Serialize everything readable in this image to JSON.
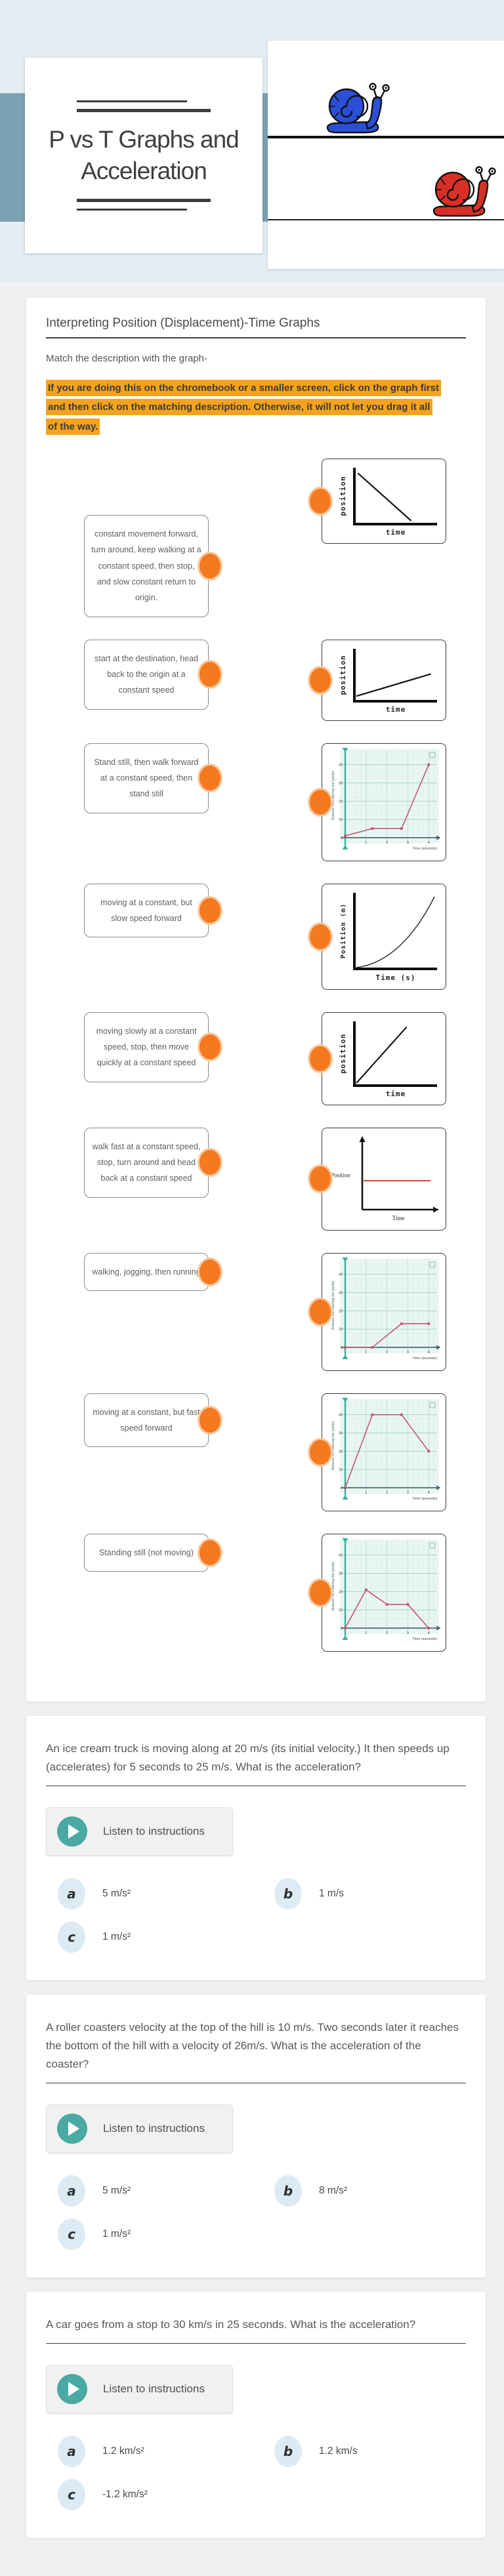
{
  "header": {
    "title": "P vs T Graphs and Acceleration",
    "snails": {
      "blue": "#2B4FD8",
      "red": "#D93025"
    }
  },
  "colors": {
    "highlight_orange": "#F5A21D",
    "connector_orange": "#F4791F",
    "teal_accent": "#4AA9A2",
    "chart_line_pink": "#C2566F",
    "header_band_blue": "#7BA1B3",
    "header_bg_blue": "#E3EDF2"
  },
  "worksheet": {
    "section_title": "Interpreting Position (Displacement)-Time Graphs",
    "match_prompt": "Match the description with the graph-",
    "match_note": "If you are doing this on the chromebook or a smaller screen, click on the graph first and then click on the matching description.  Otherwise, it will not let you drag it all of the way.",
    "pairs": [
      {
        "description": "constant movement forward, turn around, keep walking at a constant speed, then stop, and slow constant return to origin.",
        "graph": {
          "type": "axes-line",
          "ylabel": "position",
          "xlabel": "time",
          "trend": "straight line falling from high position to the time axis",
          "points": [
            [
              0.02,
              0.97
            ],
            [
              0.72,
              0.04
            ]
          ],
          "height": 118
        }
      },
      {
        "description": "start at the destination, head back to the origin at a constant speed",
        "graph": {
          "type": "axes-line",
          "ylabel": "position",
          "xlabel": "time",
          "trend": "gently rising straight line starting just above the origin",
          "points": [
            [
              0.0,
              0.08
            ],
            [
              0.98,
              0.55
            ]
          ],
          "height": 112
        }
      },
      {
        "description": "Stand still, then walk forward at a constant speed, then stand still",
        "graph": {
          "type": "grid-line",
          "ylabel": "Distance from starting line (yards)",
          "xlabel": "Time (seconds)",
          "yticks": [
            10,
            20,
            30,
            40
          ],
          "xticks": [
            1,
            2,
            3,
            4
          ],
          "trend": "slow rise, flat plateau, then steep rise to 40",
          "points_data": [
            [
              0,
              1
            ],
            [
              1.3,
              5
            ],
            [
              2.7,
              5
            ],
            [
              4,
              40
            ]
          ]
        }
      },
      {
        "description": "moving at a constant, but slow speed forward",
        "graph": {
          "type": "axes-curve",
          "ylabel": "Position (m)",
          "xlabel": "Time (s)",
          "trend": "concave-up curve rising faster and faster"
        }
      },
      {
        "description": "moving slowly at a constant speed, stop, then move quickly at a constant speed",
        "graph": {
          "type": "axes-line",
          "ylabel": "position",
          "xlabel": "time",
          "trend": "steep straight line from the origin",
          "points": [
            [
              0.0,
              0.02
            ],
            [
              0.66,
              0.97
            ]
          ],
          "height": 130
        }
      },
      {
        "description": "walk fast at a constant speed, stop, turn around and head back at a constant speed",
        "graph": {
          "type": "arrow-axes",
          "ylabel": "Position",
          "xlabel": "Time",
          "trend": "horizontal red line at constant position",
          "line_y": 0.42
        }
      },
      {
        "description": "walking, jogging, then running",
        "graph": {
          "type": "grid-line",
          "ylabel": "Distance from starting line (yards)",
          "xlabel": "Time (seconds)",
          "yticks": [
            10,
            20,
            30,
            40
          ],
          "xticks": [
            1,
            2,
            3,
            4
          ],
          "trend": "flat at zero, rise to 13, then flat plateau",
          "points_data": [
            [
              0,
              0
            ],
            [
              1.3,
              0
            ],
            [
              2.7,
              13
            ],
            [
              4,
              13
            ]
          ]
        }
      },
      {
        "description": "moving at a constant, but fast speed forward",
        "graph": {
          "type": "grid-line",
          "ylabel": "Distance from starting line (yards)",
          "xlabel": "Time (seconds)",
          "yticks": [
            10,
            20,
            30,
            40
          ],
          "xticks": [
            1,
            2,
            3,
            4
          ],
          "trend": "steep rise to 40, plateau, then fall to 20",
          "points_data": [
            [
              0,
              0
            ],
            [
              1.3,
              40
            ],
            [
              2.7,
              40
            ],
            [
              4,
              20
            ]
          ]
        }
      },
      {
        "description": "Standing still (not moving)",
        "graph": {
          "type": "grid-line",
          "ylabel": "Distance from starting line (yards)",
          "xlabel": "Time (seconds)",
          "yticks": [
            10,
            20,
            30,
            40
          ],
          "xticks": [
            1,
            2,
            3,
            4
          ],
          "trend": "rise to 21, fall to 13, plateau, fall back to 0",
          "points_data": [
            [
              0,
              0
            ],
            [
              1,
              21
            ],
            [
              2,
              13
            ],
            [
              3,
              13
            ],
            [
              4,
              0
            ]
          ]
        }
      }
    ]
  },
  "listen_button_label": "Listen to instructions",
  "questions": [
    {
      "text": "An ice cream truck is moving along at 20 m/s (its initial velocity.) It then speeds up (accelerates) for 5 seconds to 25 m/s.   What is the acceleration?",
      "options": [
        {
          "letter": "a",
          "label": "5 m/s²"
        },
        {
          "letter": "b",
          "label": "1 m/s"
        },
        {
          "letter": "c",
          "label": "1 m/s²"
        }
      ]
    },
    {
      "text": "A roller coasters velocity at the top of the hill is 10 m/s. Two seconds later it reaches the bottom of the hill with a velocity of 26m/s. What is the acceleration of the coaster?",
      "options": [
        {
          "letter": "a",
          "label": "5 m/s²"
        },
        {
          "letter": "b",
          "label": "8 m/s²"
        },
        {
          "letter": "c",
          "label": "1 m/s²"
        }
      ]
    },
    {
      "text": "A car goes from a stop to 30 km/s in 25 seconds. What is the acceleration?",
      "options": [
        {
          "letter": "a",
          "label": "1.2 km/s²"
        },
        {
          "letter": "b",
          "label": "1.2 km/s"
        },
        {
          "letter": "c",
          "label": "-1.2 km/s²"
        }
      ]
    }
  ]
}
